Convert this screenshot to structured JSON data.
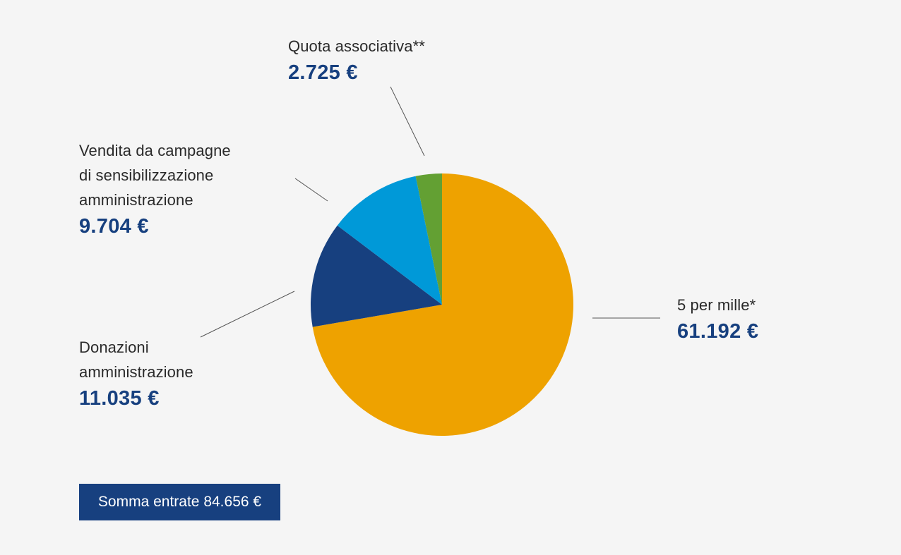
{
  "chart_data": {
    "type": "pie",
    "currency": "€",
    "slices": [
      {
        "label": "5 per mille*",
        "value_text": "61.192 €",
        "value": 61192,
        "color": "#eea200"
      },
      {
        "label": "Donazioni\namministrazione",
        "value_text": "11.035 €",
        "value": 11035,
        "color": "#17407f"
      },
      {
        "label": "Vendita da campagne\ndi sensibilizzazione\namministrazione",
        "value_text": "9.704 €",
        "value": 9704,
        "color": "#0099d8"
      },
      {
        "label": "Quota associativa**",
        "value_text": "2.725 €",
        "value": 2725,
        "color": "#63a033"
      }
    ]
  },
  "total": {
    "label": "Somma entrate 84.656 €"
  }
}
